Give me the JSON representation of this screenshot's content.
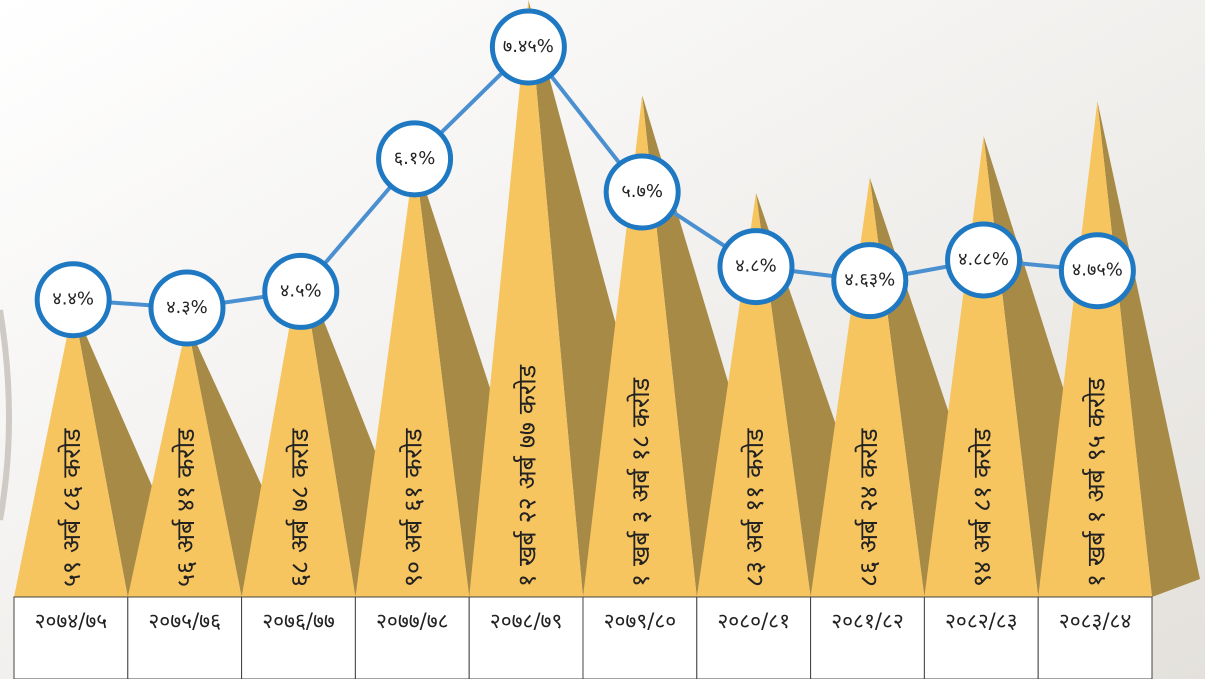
{
  "chart_data": {
    "type": "pyramid",
    "categories": [
      "२०७४/७५",
      "२०७५/७६",
      "२०७६/७७",
      "२०७७/७८",
      "२०७८/७९",
      "२०७९/८०",
      "२०८०/८१",
      "२०८१/८२",
      "२०८२/८३",
      "२०८३/८४"
    ],
    "series": [
      {
        "color": "#f7c55f",
        "shade": "#a88a47",
        "values": [
          5986,
          5641,
          6878,
          9061,
          12277,
          10318,
          8311,
          8624,
          9481,
          10195
        ],
        "value_labels": [
          "५९ अर्ब ८६ करोड",
          "५६ अर्ब ४१ करोड",
          "६८ अर्ब ७८ करोड",
          "९० अर्ब ६१ करोड",
          "१ खर्ब २२ अर्ब ७७ करोड",
          "१ खर्ब ३ अर्ब १८ करोड",
          "८३ अर्ब ११ करोड",
          "८६ अर्ब २४ करोड",
          "९४ अर्ब ८१ करोड",
          "१ खर्ब १ अर्ब ९५ करोड"
        ]
      },
      {
        "color": "#4a90d0",
        "values": [
          4.4,
          4.3,
          4.5,
          6.1,
          7.45,
          5.7,
          4.8,
          4.63,
          4.88,
          4.75
        ],
        "value_labels": [
          "४.४%",
          "४.३%",
          "४.५%",
          "६.१%",
          "७.४५%",
          "५.७%",
          "४.८%",
          "४.६३%",
          "४.८८%",
          "४.७५%"
        ]
      }
    ]
  }
}
